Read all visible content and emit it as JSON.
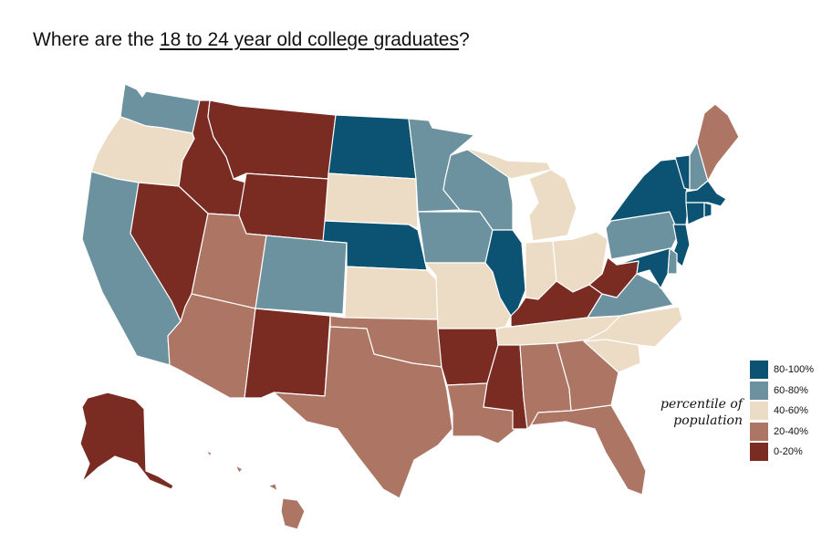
{
  "title": {
    "prefix": "Where are the ",
    "emphasis": "18 to 24 year old college graduates",
    "suffix": "?"
  },
  "legend": {
    "title_line1": "percentile of",
    "title_line2": "population",
    "items": [
      {
        "label": "80-100%",
        "color": "#0c5273"
      },
      {
        "label": "60-80%",
        "color": "#6b929e"
      },
      {
        "label": "40-60%",
        "color": "#ecdcc5"
      },
      {
        "label": "20-40%",
        "color": "#ad7564"
      },
      {
        "label": "0-20%",
        "color": "#7a2b22"
      }
    ]
  },
  "states": [
    {
      "id": "WA",
      "class": 1
    },
    {
      "id": "OR",
      "class": 2
    },
    {
      "id": "CA",
      "class": 1
    },
    {
      "id": "ID",
      "class": 4
    },
    {
      "id": "NV",
      "class": 4
    },
    {
      "id": "MT",
      "class": 4
    },
    {
      "id": "WY",
      "class": 4
    },
    {
      "id": "UT",
      "class": 3
    },
    {
      "id": "AZ",
      "class": 3
    },
    {
      "id": "CO",
      "class": 1
    },
    {
      "id": "NM",
      "class": 4
    },
    {
      "id": "ND",
      "class": 0
    },
    {
      "id": "SD",
      "class": 2
    },
    {
      "id": "NE",
      "class": 0
    },
    {
      "id": "KS",
      "class": 2
    },
    {
      "id": "OK",
      "class": 3
    },
    {
      "id": "TX",
      "class": 3
    },
    {
      "id": "MN",
      "class": 1
    },
    {
      "id": "IA",
      "class": 1
    },
    {
      "id": "MO",
      "class": 2
    },
    {
      "id": "AR",
      "class": 4
    },
    {
      "id": "LA",
      "class": 3
    },
    {
      "id": "WI",
      "class": 1
    },
    {
      "id": "IL",
      "class": 0
    },
    {
      "id": "MI",
      "class": 2
    },
    {
      "id": "IN",
      "class": 2
    },
    {
      "id": "OH",
      "class": 2
    },
    {
      "id": "KY",
      "class": 4
    },
    {
      "id": "TN",
      "class": 2
    },
    {
      "id": "MS",
      "class": 4
    },
    {
      "id": "AL",
      "class": 3
    },
    {
      "id": "GA",
      "class": 3
    },
    {
      "id": "FL",
      "class": 3
    },
    {
      "id": "SC",
      "class": 2
    },
    {
      "id": "NC",
      "class": 2
    },
    {
      "id": "VA",
      "class": 1
    },
    {
      "id": "WV",
      "class": 4
    },
    {
      "id": "PA",
      "class": 1
    },
    {
      "id": "NY",
      "class": 0
    },
    {
      "id": "VT",
      "class": 0
    },
    {
      "id": "NH",
      "class": 1
    },
    {
      "id": "ME",
      "class": 3
    },
    {
      "id": "MA",
      "class": 0
    },
    {
      "id": "CT",
      "class": 0
    },
    {
      "id": "RI",
      "class": 0
    },
    {
      "id": "NJ",
      "class": 0
    },
    {
      "id": "DE",
      "class": 1
    },
    {
      "id": "MD",
      "class": 0
    },
    {
      "id": "AK",
      "class": 4
    },
    {
      "id": "HI",
      "class": 3
    }
  ]
}
